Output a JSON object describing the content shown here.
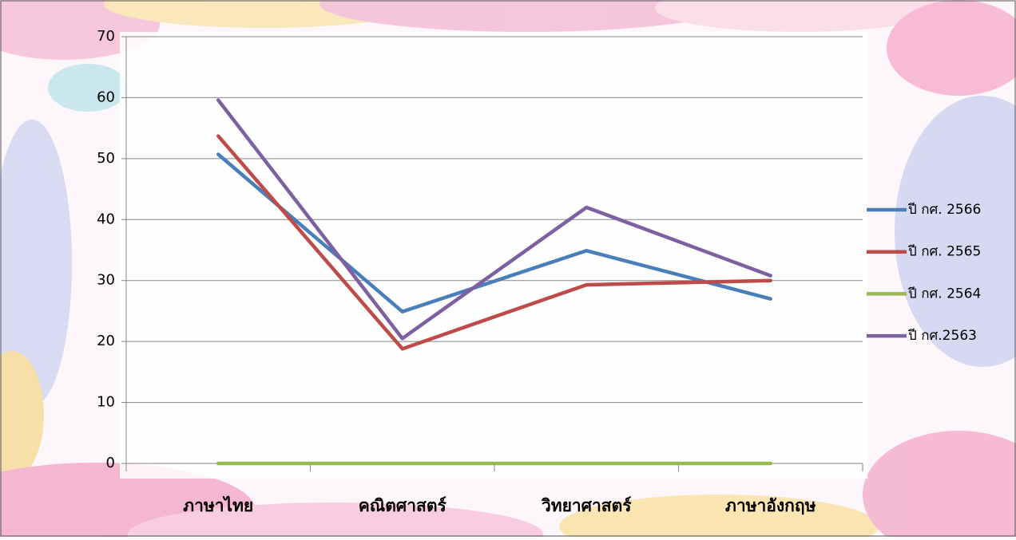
{
  "chart_data": {
    "type": "line",
    "categories": [
      "ภาษาไทย",
      "คณิตศาสตร์",
      "วิทยาศาสตร์",
      "ภาษาอังกฤษ"
    ],
    "series": [
      {
        "name": "ปี กศ. 2566",
        "color": "#4a7ebb",
        "values": [
          50.7,
          24.9,
          34.9,
          27.0
        ]
      },
      {
        "name": "ปี กศ. 2565",
        "color": "#be4b48",
        "values": [
          53.7,
          18.8,
          29.3,
          30.0
        ]
      },
      {
        "name": "ปี กศ. 2564",
        "color": "#98b954",
        "values": [
          0,
          0,
          0,
          0
        ]
      },
      {
        "name": "ปี กศ.2563",
        "color": "#7d60a0",
        "values": [
          59.6,
          20.5,
          42.0,
          30.8
        ]
      }
    ],
    "ylim": [
      0,
      70
    ],
    "yticks": [
      0,
      10,
      20,
      30,
      40,
      50,
      60,
      70
    ],
    "grid": true,
    "legend": "right"
  }
}
